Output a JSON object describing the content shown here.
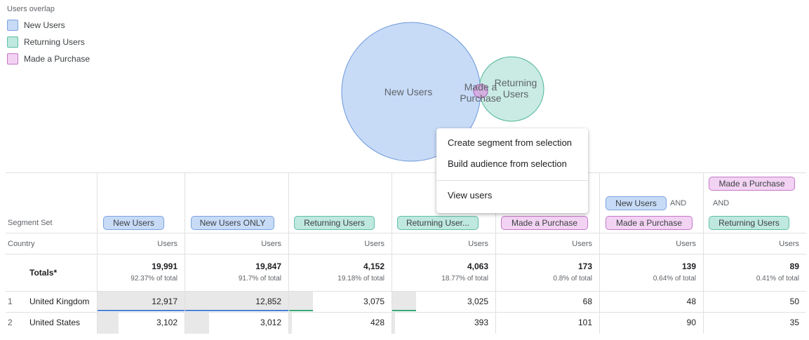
{
  "legend": {
    "title": "Users overlap",
    "items": [
      {
        "label": "New Users",
        "fill": "#c7dbf7",
        "border": "#7ba3e0"
      },
      {
        "label": "Returning Users",
        "fill": "#bfe8df",
        "border": "#5fbfa8"
      },
      {
        "label": "Made a Purchase",
        "fill": "#f3d3f3",
        "border": "#c477c7"
      }
    ]
  },
  "venn": {
    "new_users_label": "New Users",
    "returning_line1": "Returning",
    "returning_line2": "Users",
    "purchase_line1": "Made a",
    "purchase_line2": "Purchase"
  },
  "context_menu": {
    "items": [
      "Create segment from selection",
      "Build audience from selection",
      "View users"
    ]
  },
  "table": {
    "segment_set_label": "Segment Set",
    "country_label": "Country",
    "metric_label": "Users",
    "and_label": "AND",
    "segments": [
      {
        "chips": [
          "New Users"
        ]
      },
      {
        "chips": [
          "New Users ONLY"
        ]
      },
      {
        "chips": [
          "Returning Users"
        ]
      },
      {
        "chips": [
          "Returning User..."
        ]
      },
      {
        "chips": [
          "Made a Purchase"
        ]
      },
      {
        "chips": [
          "New Users",
          "Made a Purchase"
        ]
      },
      {
        "chips": [
          "Made a Purchase",
          "Returning Users"
        ]
      }
    ],
    "totals_label": "Totals*",
    "totals": [
      {
        "value": "19,991",
        "pct": "92.37% of total"
      },
      {
        "value": "19,847",
        "pct": "91.7% of total"
      },
      {
        "value": "4,152",
        "pct": "19.18% of total"
      },
      {
        "value": "4,063",
        "pct": "18.77% of total"
      },
      {
        "value": "173",
        "pct": "0.8% of total"
      },
      {
        "value": "139",
        "pct": "0.64% of total"
      },
      {
        "value": "89",
        "pct": "0.41% of total"
      }
    ],
    "rows": [
      {
        "index": "1",
        "country": "United Kingdom",
        "values": [
          "12,917",
          "12,852",
          "3,075",
          "3,025",
          "68",
          "48",
          "50"
        ]
      },
      {
        "index": "2",
        "country": "United States",
        "values": [
          "3,102",
          "3,012",
          "428",
          "393",
          "101",
          "90",
          "35"
        ]
      }
    ]
  },
  "colors": {
    "new_users_bar": "#4a7fd4",
    "returning_bar": "#3aa876",
    "grid": "#e0e0e0"
  }
}
